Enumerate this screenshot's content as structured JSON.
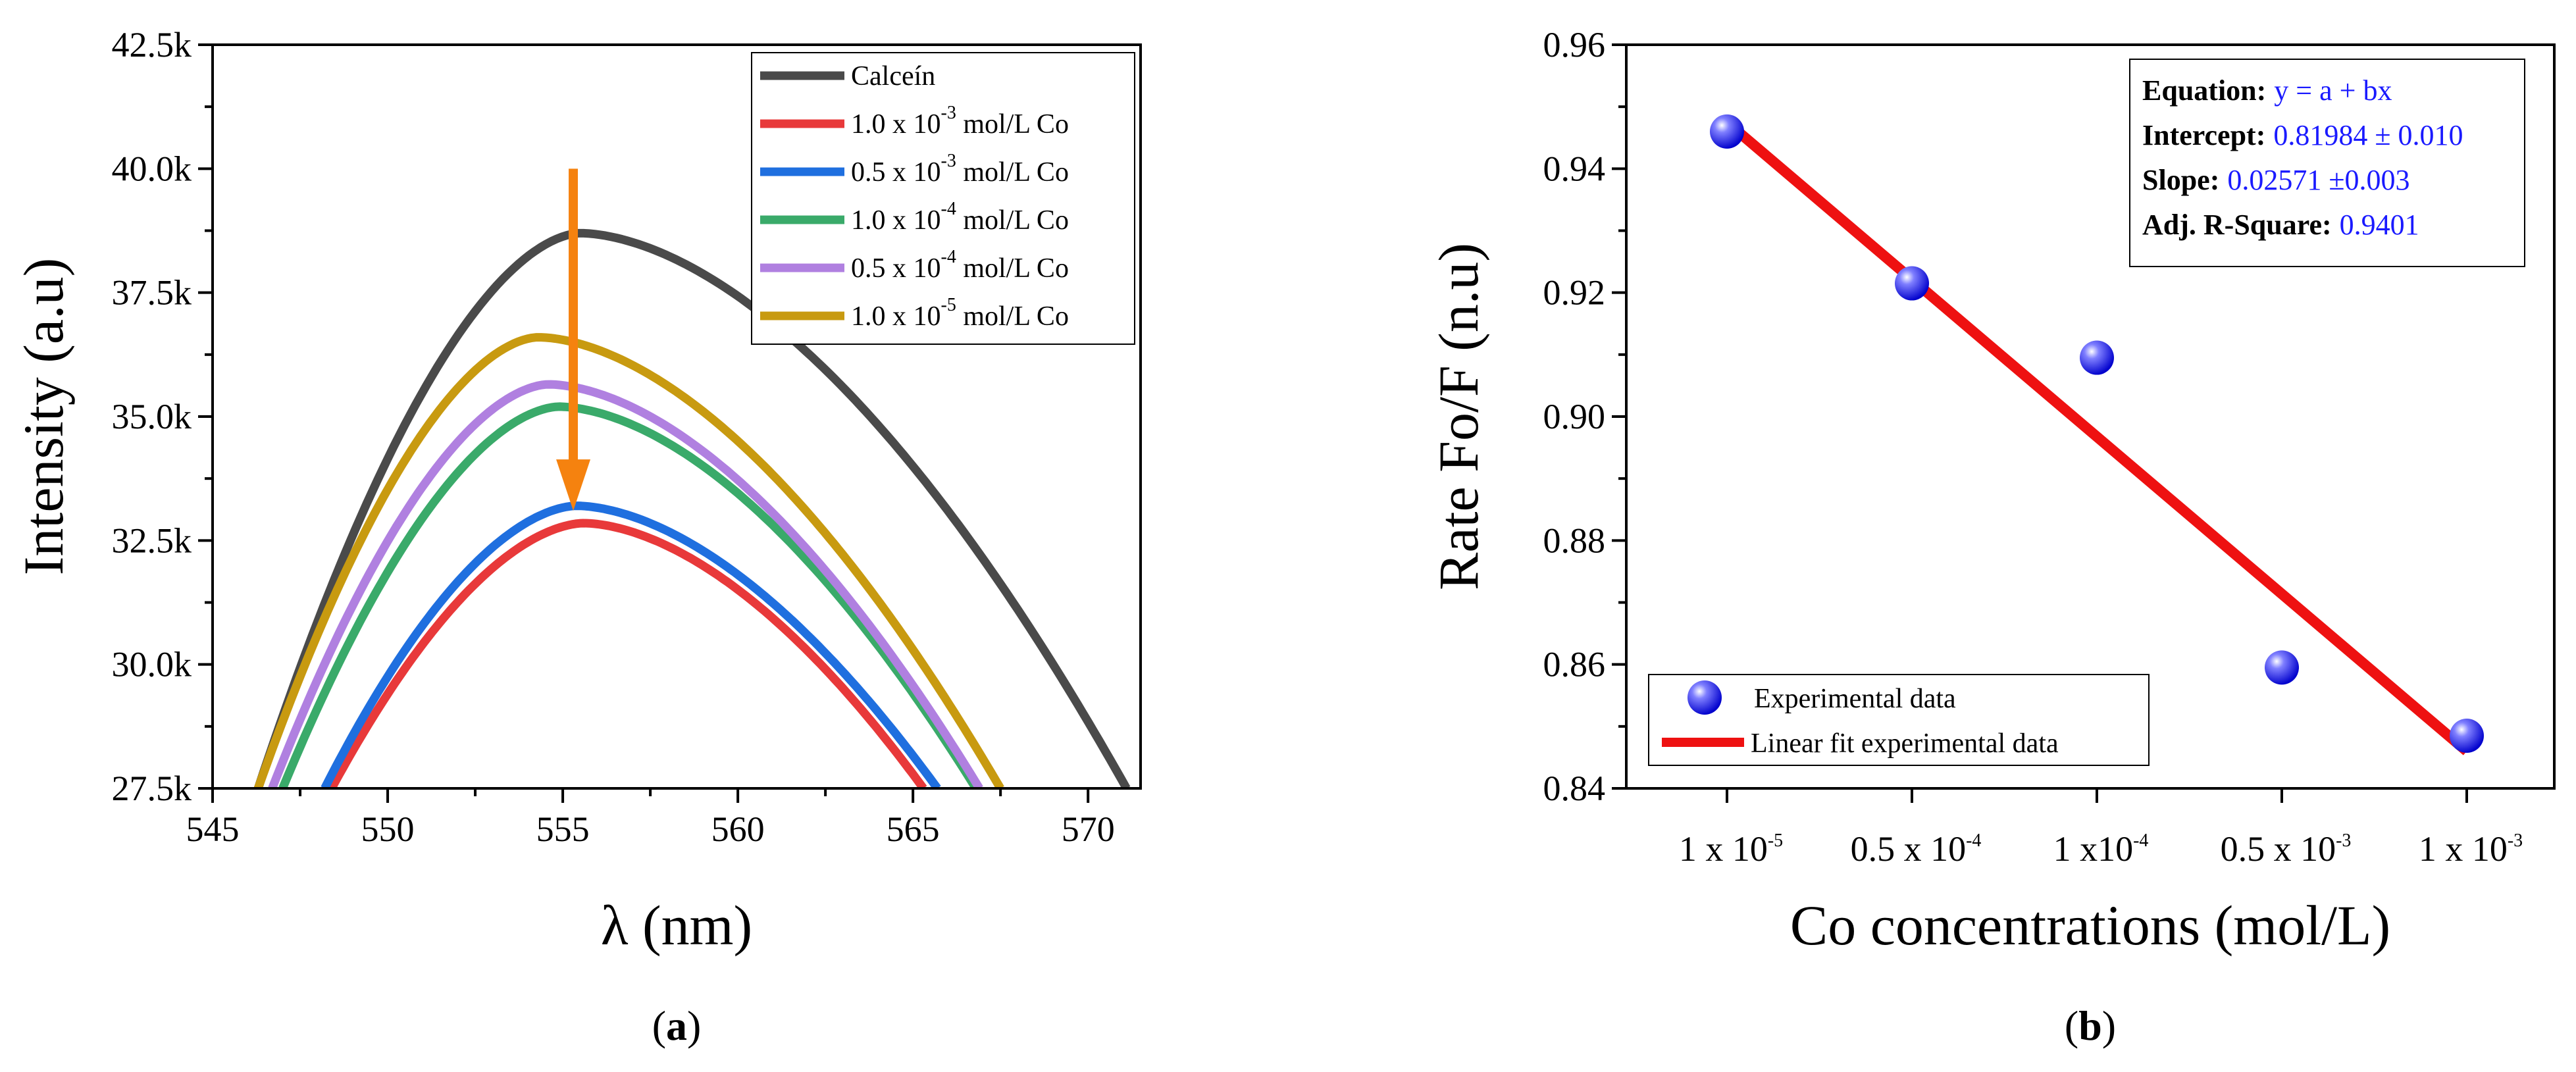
{
  "chart_data": [
    {
      "type": "line",
      "panel_label": "a",
      "xlabel": "λ (nm)",
      "ylabel": "Intensity (a.u)",
      "xlim": [
        545,
        571.5
      ],
      "ylim": [
        27500,
        42500
      ],
      "x_ticks": [
        545,
        550,
        555,
        560,
        565,
        570
      ],
      "x_tick_labels": [
        "545",
        "550",
        "555",
        "560",
        "565",
        "570"
      ],
      "y_ticks": [
        27500,
        30000,
        32500,
        35000,
        37500,
        40000,
        42500
      ],
      "y_tick_labels": [
        "27.5k",
        "30.0k",
        "32.5k",
        "35.0k",
        "37.5k",
        "40.0k",
        "42.5k"
      ],
      "legend_position": "top-right",
      "series": [
        {
          "name": "Calceín",
          "name_base": "Calceín",
          "name_exp": "",
          "name_unit": "",
          "color": "#4a4a4a",
          "peak_x": 555.5,
          "peak_y": 38700,
          "x_start": 546.3,
          "x_end": 571.1
        },
        {
          "name": "1.0 x 10-3 mol/L Co",
          "name_base": "1.0 x 10",
          "name_exp": "-3",
          "name_unit": " mol/L Co",
          "color": "#e8393a",
          "peak_x": 555.6,
          "peak_y": 32850,
          "x_start": 548.4,
          "x_end": 565.3
        },
        {
          "name": "0.5 x 10-3 mol/L Co",
          "name_base": "0.5 x 10",
          "name_exp": "-3",
          "name_unit": " mol/L Co",
          "color": "#1f6fdf",
          "peak_x": 555.4,
          "peak_y": 33200,
          "x_start": 548.2,
          "x_end": 565.7
        },
        {
          "name": "1.0 x 10-4 mol/L Co",
          "name_base": "1.0 x 10",
          "name_exp": "-4",
          "name_unit": " mol/L Co",
          "color": "#3aaa6a",
          "peak_x": 554.9,
          "peak_y": 35200,
          "x_start": 547.0,
          "x_end": 566.8
        },
        {
          "name": "0.5 x 10-4 mol/L Co",
          "name_base": "0.5 x 10",
          "name_exp": "-4",
          "name_unit": " mol/L Co",
          "color": "#b080e0",
          "peak_x": 554.6,
          "peak_y": 35650,
          "x_start": 546.7,
          "x_end": 566.9
        },
        {
          "name": "1.0 x 10-5 mol/L Co",
          "name_base": "1.0 x 10",
          "name_exp": "-5",
          "name_unit": " mol/L Co",
          "color": "#c89a10",
          "peak_x": 554.3,
          "peak_y": 36600,
          "x_start": 546.3,
          "x_end": 567.5
        }
      ],
      "arrow": {
        "x": 555.3,
        "y_from": 40000,
        "y_to": 33100,
        "color": "#f5820f"
      }
    },
    {
      "type": "scatter",
      "panel_label": "b",
      "xlabel": "Co concentrations (mol/L)",
      "ylabel": "Rate Fo/F (n.u)",
      "ylim": [
        0.84,
        0.96
      ],
      "y_ticks": [
        0.84,
        0.86,
        0.88,
        0.9,
        0.92,
        0.94,
        0.96
      ],
      "y_tick_labels": [
        "0.84",
        "0.86",
        "0.88",
        "0.90",
        "0.92",
        "0.94",
        "0.96"
      ],
      "categories": [
        {
          "base": "1 x 10",
          "exp": "-5"
        },
        {
          "base": "0.5 x 10",
          "exp": "-4"
        },
        {
          "base": "1 x10",
          "exp": "-4"
        },
        {
          "base": "0.5 x 10",
          "exp": "-3"
        },
        {
          "base": "1 x 10",
          "exp": "-3"
        }
      ],
      "values": [
        0.946,
        0.9215,
        0.9095,
        0.8595,
        0.8485
      ],
      "fit": {
        "y_start": 0.9475,
        "y_end": 0.846,
        "color": "#ee1111"
      },
      "point_color": "#1a1aff",
      "legend_position": "bottom-left",
      "legend": [
        "Experimental data",
        "Linear fit experimental data"
      ],
      "equation_box": [
        {
          "label": "Equation:",
          "value": "y = a + bx"
        },
        {
          "label": "Intercept:",
          "value": "0.81984 ± 0.010"
        },
        {
          "label": "Slope:",
          "value": "0.02571 ±0.003"
        },
        {
          "label": "Adj. R-Square:",
          "value": "0.9401"
        }
      ]
    }
  ]
}
